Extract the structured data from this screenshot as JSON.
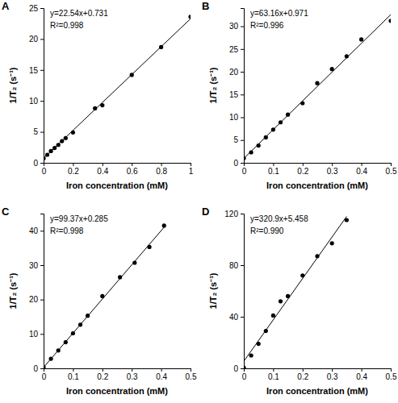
{
  "chart_data": [
    {
      "type": "scatter",
      "title": "A",
      "x_label": "Iron concentration (mM)",
      "y_label": "1/T₂ (s⁻¹)",
      "annotations": [
        "y=22.54x+0.731",
        "R²=0.998"
      ],
      "xlim": [
        0,
        1
      ],
      "xticks": [
        0,
        0.2,
        0.4,
        0.6,
        0.8,
        1
      ],
      "ylim": [
        0,
        25
      ],
      "yticks": [
        0,
        5,
        10,
        15,
        20,
        25
      ],
      "series": [
        {
          "type": "scatter",
          "marker": "circle",
          "color": "#000000",
          "x": [
            0,
            0.025,
            0.05,
            0.075,
            0.1,
            0.125,
            0.15,
            0.2,
            0.35,
            0.4,
            0.6,
            0.8,
            1
          ],
          "values": [
            0.73,
            1.3,
            1.9,
            2.4,
            2.9,
            3.5,
            4.0,
            4.9,
            8.8,
            9.3,
            14.2,
            18.7,
            23.6
          ]
        },
        {
          "type": "line",
          "line_style": "solid",
          "color": "#000000",
          "x": [
            0,
            1
          ],
          "values": [
            0.731,
            23.27
          ]
        }
      ]
    },
    {
      "type": "scatter",
      "title": "B",
      "x_label": "Iron concentration (mM)",
      "y_label": "1/T₂ (s⁻¹)",
      "annotations": [
        "y=63.16x+0.971",
        "R²=0.996"
      ],
      "xlim": [
        0,
        0.5
      ],
      "xticks": [
        0,
        0.1,
        0.2,
        0.3,
        0.4,
        0.5
      ],
      "ylim": [
        0,
        34
      ],
      "yticks": [
        0,
        5,
        10,
        15,
        20,
        25,
        30
      ],
      "series": [
        {
          "type": "scatter",
          "marker": "circle",
          "color": "#000000",
          "x": [
            0,
            0.025,
            0.05,
            0.075,
            0.1,
            0.125,
            0.15,
            0.2,
            0.25,
            0.3,
            0.35,
            0.4,
            0.5
          ],
          "values": [
            1.0,
            2.3,
            3.8,
            5.6,
            7.3,
            8.9,
            10.6,
            13.1,
            17.5,
            20.6,
            23.4,
            27.1,
            31.2
          ]
        },
        {
          "type": "line",
          "line_style": "solid",
          "color": "#000000",
          "x": [
            0,
            0.5
          ],
          "values": [
            0.971,
            32.55
          ]
        }
      ]
    },
    {
      "type": "scatter",
      "title": "C",
      "x_label": "Iron concentration (mM)",
      "y_label": "1/T₂ (s⁻¹)",
      "annotations": [
        "y=99.37x+0.285",
        "R²=0.998"
      ],
      "xlim": [
        0,
        0.5
      ],
      "xticks": [
        0,
        0.1,
        0.2,
        0.3,
        0.4,
        0.5
      ],
      "ylim": [
        0,
        45
      ],
      "yticks": [
        0,
        10,
        20,
        30,
        40
      ],
      "series": [
        {
          "type": "scatter",
          "marker": "circle",
          "color": "#000000",
          "x": [
            0,
            0.025,
            0.05,
            0.075,
            0.1,
            0.125,
            0.15,
            0.2,
            0.26,
            0.31,
            0.36,
            0.41
          ],
          "values": [
            0.3,
            2.8,
            5.2,
            7.6,
            10.2,
            12.7,
            15.3,
            21.0,
            26.5,
            30.7,
            35.3,
            41.5
          ]
        },
        {
          "type": "line",
          "line_style": "solid",
          "color": "#000000",
          "x": [
            0,
            0.41
          ],
          "values": [
            0.285,
            41.03
          ]
        }
      ]
    },
    {
      "type": "scatter",
      "title": "D",
      "x_label": "Iron concentration (mM)",
      "y_label": "1/T₂ (s⁻¹)",
      "annotations": [
        "y=320.9x+5.458",
        "R²=0.990"
      ],
      "xlim": [
        0,
        0.5
      ],
      "xticks": [
        0,
        0.1,
        0.2,
        0.3,
        0.4,
        0.5
      ],
      "ylim": [
        0,
        120
      ],
      "yticks": [
        0,
        40,
        80,
        120
      ],
      "series": [
        {
          "type": "scatter",
          "marker": "circle",
          "color": "#000000",
          "x": [
            0,
            0.025,
            0.05,
            0.075,
            0.1,
            0.125,
            0.15,
            0.2,
            0.25,
            0.3,
            0.35
          ],
          "values": [
            0.5,
            10,
            19,
            29,
            41,
            52,
            56,
            72,
            87,
            97,
            115
          ]
        },
        {
          "type": "line",
          "line_style": "solid",
          "color": "#000000",
          "x": [
            0,
            0.35
          ],
          "values": [
            5.458,
            117.8
          ]
        }
      ]
    }
  ]
}
